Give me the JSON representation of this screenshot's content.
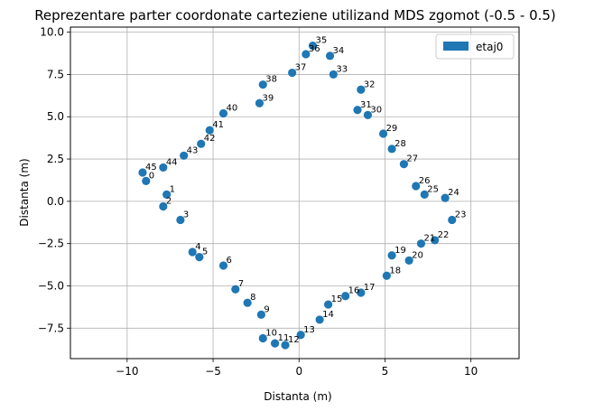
{
  "chart_data": {
    "type": "scatter",
    "title": "Reprezentare parter coordonate carteziene utilizand MDS zgomot (-0.5 - 0.5)",
    "xlabel": "Distanta (m)",
    "ylabel": "Distanta (m)",
    "xlim": [
      -13.3,
      12.8
    ],
    "ylim": [
      -9.3,
      10.3
    ],
    "xticks": [
      -10,
      -5,
      0,
      5,
      10
    ],
    "yticks": [
      -7.5,
      -5.0,
      -2.5,
      0.0,
      2.5,
      5.0,
      7.5,
      10.0
    ],
    "xtick_labels": [
      "−10",
      "−5",
      "0",
      "5",
      "10"
    ],
    "ytick_labels": [
      "−7.5",
      "−5.0",
      "−2.5",
      "0.0",
      "2.5",
      "5.0",
      "7.5",
      "10.0"
    ],
    "grid": true,
    "legend_position": "top-right",
    "series": [
      {
        "name": "etaj0",
        "color": "#1f77b4",
        "points": [
          {
            "label": "0",
            "x": -8.9,
            "y": 1.2
          },
          {
            "label": "1",
            "x": -7.7,
            "y": 0.4
          },
          {
            "label": "2",
            "x": -7.9,
            "y": -0.3
          },
          {
            "label": "3",
            "x": -6.9,
            "y": -1.1
          },
          {
            "label": "4",
            "x": -6.2,
            "y": -3.0
          },
          {
            "label": "5",
            "x": -5.8,
            "y": -3.3
          },
          {
            "label": "6",
            "x": -4.4,
            "y": -3.8
          },
          {
            "label": "7",
            "x": -3.7,
            "y": -5.2
          },
          {
            "label": "8",
            "x": -3.0,
            "y": -6.0
          },
          {
            "label": "9",
            "x": -2.2,
            "y": -6.7
          },
          {
            "label": "10",
            "x": -2.1,
            "y": -8.1
          },
          {
            "label": "11",
            "x": -1.4,
            "y": -8.4
          },
          {
            "label": "12",
            "x": -0.8,
            "y": -8.5
          },
          {
            "label": "13",
            "x": 0.1,
            "y": -7.9
          },
          {
            "label": "14",
            "x": 1.2,
            "y": -7.0
          },
          {
            "label": "15",
            "x": 1.7,
            "y": -6.1
          },
          {
            "label": "16",
            "x": 2.7,
            "y": -5.6
          },
          {
            "label": "17",
            "x": 3.6,
            "y": -5.4
          },
          {
            "label": "18",
            "x": 5.1,
            "y": -4.4
          },
          {
            "label": "19",
            "x": 5.4,
            "y": -3.2
          },
          {
            "label": "20",
            "x": 6.4,
            "y": -3.5
          },
          {
            "label": "21",
            "x": 7.1,
            "y": -2.5
          },
          {
            "label": "22",
            "x": 7.9,
            "y": -2.3
          },
          {
            "label": "23",
            "x": 8.9,
            "y": -1.1
          },
          {
            "label": "24",
            "x": 8.5,
            "y": 0.2
          },
          {
            "label": "25",
            "x": 7.3,
            "y": 0.4
          },
          {
            "label": "26",
            "x": 6.8,
            "y": 0.9
          },
          {
            "label": "27",
            "x": 6.1,
            "y": 2.2
          },
          {
            "label": "28",
            "x": 5.4,
            "y": 3.1
          },
          {
            "label": "29",
            "x": 4.9,
            "y": 4.0
          },
          {
            "label": "30",
            "x": 4.0,
            "y": 5.1
          },
          {
            "label": "31",
            "x": 3.4,
            "y": 5.4
          },
          {
            "label": "32",
            "x": 3.6,
            "y": 6.6
          },
          {
            "label": "33",
            "x": 2.0,
            "y": 7.5
          },
          {
            "label": "34",
            "x": 1.8,
            "y": 8.6
          },
          {
            "label": "35",
            "x": 0.8,
            "y": 9.2
          },
          {
            "label": "36",
            "x": 0.4,
            "y": 8.7
          },
          {
            "label": "37",
            "x": -0.4,
            "y": 7.6
          },
          {
            "label": "38",
            "x": -2.1,
            "y": 6.9
          },
          {
            "label": "39",
            "x": -2.3,
            "y": 5.8
          },
          {
            "label": "40",
            "x": -4.4,
            "y": 5.2
          },
          {
            "label": "41",
            "x": -5.2,
            "y": 4.2
          },
          {
            "label": "42",
            "x": -5.7,
            "y": 3.4
          },
          {
            "label": "43",
            "x": -6.7,
            "y": 2.7
          },
          {
            "label": "44",
            "x": -7.9,
            "y": 2.0
          },
          {
            "label": "45",
            "x": -9.1,
            "y": 1.7
          }
        ]
      }
    ]
  }
}
